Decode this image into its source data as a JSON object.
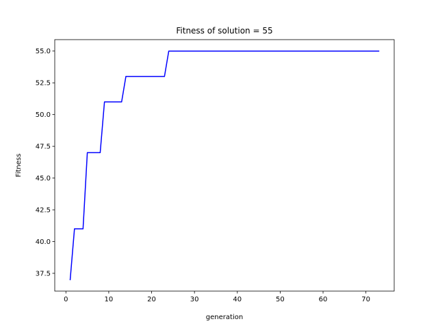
{
  "chart_data": {
    "type": "line",
    "title": "Fitness of solution = 55",
    "xlabel": "generation",
    "ylabel": "Fitness",
    "xlim": [
      -2.6,
      76.6
    ],
    "ylim": [
      36.1,
      55.9
    ],
    "xticks": [
      0,
      10,
      20,
      30,
      40,
      50,
      60,
      70
    ],
    "yticks": [
      37.5,
      40.0,
      42.5,
      45.0,
      47.5,
      50.0,
      52.5,
      55.0
    ],
    "xtick_labels": [
      "0",
      "10",
      "20",
      "30",
      "40",
      "50",
      "60",
      "70"
    ],
    "ytick_labels": [
      "37.5",
      "40.0",
      "42.5",
      "45.0",
      "47.5",
      "50.0",
      "52.5",
      "55.0"
    ],
    "grid": false,
    "series": [
      {
        "color": "#0000ff",
        "x": [
          1,
          2,
          3,
          4,
          5,
          6,
          7,
          8,
          9,
          10,
          11,
          12,
          13,
          14,
          15,
          16,
          17,
          18,
          19,
          20,
          21,
          22,
          23,
          24,
          25,
          26,
          27,
          28,
          29,
          30,
          31,
          32,
          33,
          34,
          35,
          36,
          37,
          38,
          39,
          40,
          41,
          42,
          43,
          44,
          45,
          46,
          47,
          48,
          49,
          50,
          51,
          52,
          53,
          54,
          55,
          56,
          57,
          58,
          59,
          60,
          61,
          62,
          63,
          64,
          65,
          66,
          67,
          68,
          69,
          70,
          71,
          72,
          73
        ],
        "y": [
          37,
          41,
          41,
          41,
          47,
          47,
          47,
          47,
          51,
          51,
          51,
          51,
          51,
          53,
          53,
          53,
          53,
          53,
          53,
          53,
          53,
          53,
          53,
          55,
          55,
          55,
          55,
          55,
          55,
          55,
          55,
          55,
          55,
          55,
          55,
          55,
          55,
          55,
          55,
          55,
          55,
          55,
          55,
          55,
          55,
          55,
          55,
          55,
          55,
          55,
          55,
          55,
          55,
          55,
          55,
          55,
          55,
          55,
          55,
          55,
          55,
          55,
          55,
          55,
          55,
          55,
          55,
          55,
          55,
          55,
          55,
          55,
          55
        ]
      }
    ]
  }
}
